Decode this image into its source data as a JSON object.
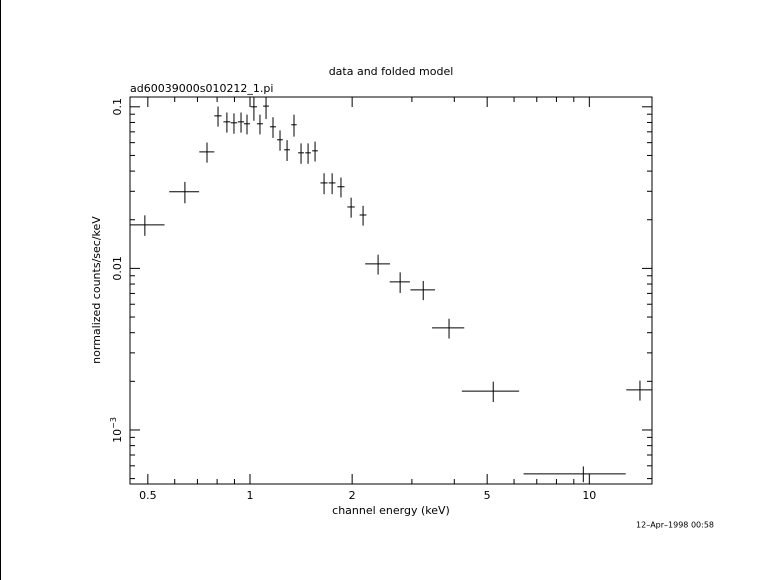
{
  "chart_data": {
    "type": "scatter",
    "title": "data and folded model",
    "subtitle": "ad60039000s010212_1.pi",
    "xlabel": "channel energy (keV)",
    "ylabel": "normalized counts/sec/keV",
    "annotation": "12–Apr–1998 00:58",
    "xlog": true,
    "ylog": true,
    "color": "#000000",
    "xlim": [
      0.443,
      15.3
    ],
    "ylim": [
      0.000463,
      0.115
    ],
    "xticks": [
      0.5,
      1,
      2,
      5,
      10
    ],
    "xticks_minor": [
      0.6,
      0.7,
      0.8,
      0.9,
      3,
      4,
      6,
      7,
      8,
      9
    ],
    "yticks": [
      {
        "value": 0.001,
        "label": "10",
        "exponent": "−3"
      },
      0.01,
      0.1
    ],
    "yticks_minor": [
      0.0005,
      0.0006,
      0.0007,
      0.0008,
      0.0009,
      0.002,
      0.003,
      0.004,
      0.005,
      0.006,
      0.007,
      0.008,
      0.009,
      0.02,
      0.03,
      0.04,
      0.05,
      0.06,
      0.07,
      0.08,
      0.09
    ],
    "series": [
      {
        "name": "data",
        "x": [
          0.49,
          0.643,
          0.747,
          0.805,
          0.855,
          0.897,
          0.941,
          0.98,
          1.027,
          1.07,
          1.115,
          1.169,
          1.226,
          1.286,
          1.348,
          1.414,
          1.483,
          1.555,
          1.653,
          1.746,
          1.854,
          1.986,
          2.154,
          2.385,
          2.77,
          3.24,
          3.86,
          5.21,
          9.6,
          14.1
        ],
        "xerr": [
          0.07,
          0.065,
          0.038,
          0.02,
          0.02,
          0.02,
          0.02,
          0.02,
          0.022,
          0.022,
          0.022,
          0.024,
          0.024,
          0.025,
          0.025,
          0.028,
          0.028,
          0.03,
          0.04,
          0.04,
          0.045,
          0.05,
          0.05,
          0.2,
          0.19,
          0.27,
          0.42,
          1.0,
          3.2,
          1.25
        ],
        "values": [
          0.0186,
          0.0298,
          0.0526,
          0.0879,
          0.0807,
          0.0796,
          0.0807,
          0.0785,
          0.1,
          0.0785,
          0.101,
          0.0752,
          0.0625,
          0.0542,
          0.0774,
          0.0519,
          0.0519,
          0.0534,
          0.0338,
          0.0338,
          0.032,
          0.024,
          0.0214,
          0.01066,
          0.00825,
          0.00736,
          0.00428,
          0.00174,
          0.000535,
          0.00177
        ],
        "yerr": [
          0.0027,
          0.0045,
          0.0075,
          0.0125,
          0.0115,
          0.0115,
          0.0115,
          0.011,
          0.018,
          0.011,
          0.017,
          0.011,
          0.009,
          0.008,
          0.012,
          0.0075,
          0.0075,
          0.0075,
          0.005,
          0.005,
          0.0045,
          0.0034,
          0.003,
          0.0015,
          0.0012,
          0.001,
          0.0006,
          0.00025,
          6e-05,
          0.00025
        ]
      }
    ]
  }
}
